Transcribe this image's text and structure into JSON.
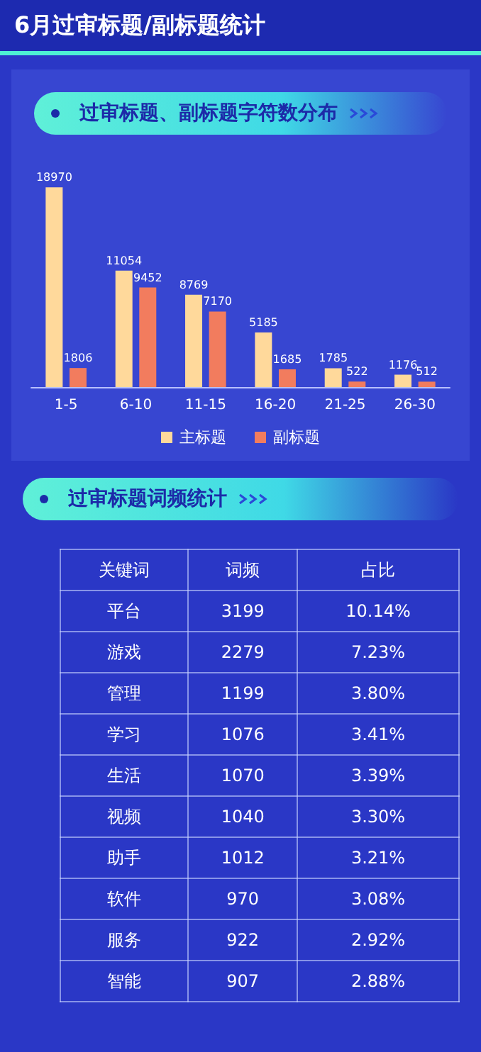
{
  "chart_data": [
    {
      "type": "bar",
      "title": "6月过审标题/副标题统计",
      "subtitle": "过审标题、副标题字符数分布",
      "categories": [
        "1-5",
        "6-10",
        "11-15",
        "16-20",
        "21-25",
        "26-30"
      ],
      "series": [
        {
          "name": "主标题",
          "color": "#ffd99b",
          "values": [
            18970,
            11054,
            8769,
            5185,
            1785,
            1176
          ]
        },
        {
          "name": "副标题",
          "color": "#f27c5e",
          "values": [
            1806,
            9452,
            7170,
            1685,
            522,
            512
          ]
        }
      ],
      "data_labels": true,
      "legend": "bottom",
      "tick_labels": "x"
    },
    {
      "type": "other",
      "title": "过审标题词频统计",
      "xlabel": "关键词",
      "categories": [
        "平台",
        "游戏",
        "管理",
        "学习",
        "生活",
        "视频",
        "助手",
        "软件",
        "服务",
        "智能"
      ],
      "series": [
        {
          "name": "词频",
          "values": [
            3199,
            2279,
            1199,
            1076,
            1070,
            1040,
            1012,
            970,
            922,
            907
          ]
        },
        {
          "name": "占比",
          "values": [
            10.14,
            7.23,
            3.8,
            3.41,
            3.39,
            3.3,
            3.21,
            3.08,
            2.92,
            2.88
          ],
          "value_labels": [
            "10.14%",
            "7.23%",
            "3.80%",
            "3.41%",
            "3.39%",
            "3.30%",
            "3.21%",
            "3.08%",
            "2.92%",
            "2.88%"
          ]
        }
      ],
      "data_labels": true
    }
  ]
}
